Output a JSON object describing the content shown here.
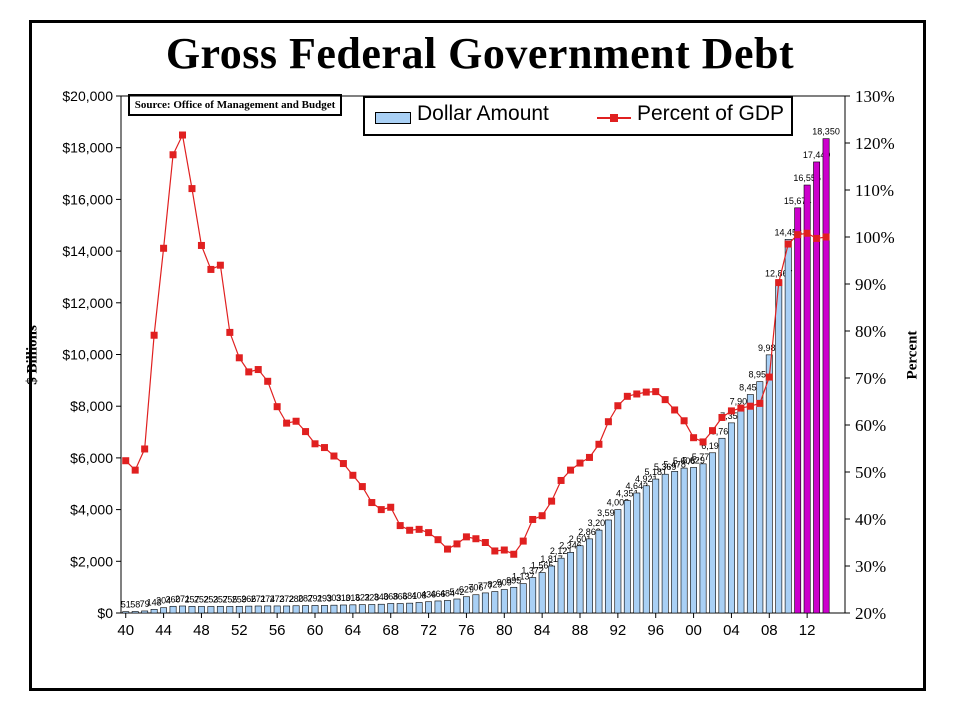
{
  "chart_data": {
    "type": "bar",
    "title": "Gross Federal Government Debt",
    "source": "Source: Office of Management and Budget",
    "ylabel_left": "$ Billions",
    "ylabel_right": "Percent",
    "left_axis": {
      "min": 0,
      "max": 20000,
      "ticks": [
        "$0",
        "$2,000",
        "$4,000",
        "$6,000",
        "$8,000",
        "$10,000",
        "$12,000",
        "$14,000",
        "$16,000",
        "$18,000",
        "$20,000"
      ]
    },
    "right_axis": {
      "min": 20,
      "max": 130,
      "ticks": [
        "20%",
        "30%",
        "40%",
        "50%",
        "60%",
        "70%",
        "80%",
        "90%",
        "100%",
        "110%",
        "120%",
        "130%"
      ]
    },
    "x_tick_labels": [
      "40",
      "44",
      "48",
      "52",
      "56",
      "60",
      "64",
      "68",
      "72",
      "76",
      "80",
      "84",
      "88",
      "92",
      "96",
      "00",
      "04",
      "08",
      "12"
    ],
    "legend_position": "top-right",
    "colors": {
      "bar": "#a9d0f5",
      "bar_projected": "#cc00cc",
      "line": "#e02020"
    },
    "years": [
      1940,
      1941,
      1942,
      1943,
      1944,
      1945,
      1946,
      1947,
      1948,
      1949,
      1950,
      1951,
      1952,
      1953,
      1954,
      1955,
      1956,
      1957,
      1958,
      1959,
      1960,
      1961,
      1962,
      1963,
      1964,
      1965,
      1966,
      1967,
      1968,
      1969,
      1970,
      1971,
      1972,
      1973,
      1974,
      1975,
      1976,
      1977,
      1978,
      1979,
      1980,
      1981,
      1982,
      1983,
      1984,
      1985,
      1986,
      1987,
      1988,
      1989,
      1990,
      1991,
      1992,
      1993,
      1994,
      1995,
      1996,
      1997,
      1998,
      1999,
      2000,
      2001,
      2002,
      2003,
      2004,
      2005,
      2006,
      2007,
      2008,
      2009,
      2010,
      2011,
      2012,
      2013,
      2014
    ],
    "series": [
      {
        "name": "Dollar Amount",
        "values": [
          51,
          58,
          79,
          143,
          204,
          260,
          271,
          257,
          252,
          253,
          257,
          255,
          259,
          266,
          271,
          274,
          273,
          272,
          280,
          287,
          291,
          293,
          303,
          310,
          316,
          322,
          328,
          340,
          368,
          366,
          381,
          408,
          436,
          466,
          484,
          542,
          629,
          706,
          777,
          829,
          909,
          995,
          1137,
          1372,
          1565,
          1817,
          2121,
          2346,
          2601,
          2868,
          3206,
          3598,
          4002,
          4351,
          4643,
          4921,
          5181,
          5369,
          5478,
          5606,
          5629,
          5770,
          6198,
          6760,
          7355,
          7905,
          8451,
          8951,
          9986,
          12867,
          14456,
          15674,
          16556,
          17449,
          18350
        ],
        "data_labels": [
          "51",
          "58",
          "79",
          "143",
          "204",
          "260",
          "271",
          "257",
          "252",
          "253",
          "257",
          "255",
          "259",
          "266",
          "271",
          "274",
          "273",
          "272",
          "280",
          "287",
          "291",
          "293",
          "303",
          "310",
          "316",
          "322",
          "328",
          "340",
          "368",
          "366",
          "381",
          "408",
          "436",
          "466",
          "484",
          "542",
          "629",
          "706",
          "777",
          "829",
          "909",
          "995",
          "1,137",
          "1,372",
          "1,565",
          "1,817",
          "2,121",
          "2,346",
          "2,601",
          "2,868",
          "3,206",
          "3,598",
          "4,002",
          "4,351",
          "4,643",
          "4,921",
          "5,181",
          "5,369",
          "5,478",
          "5,606",
          "5,629",
          "5,770",
          "6,198",
          "6,760",
          "7,355",
          "7,905",
          "8,451",
          "8,951",
          "9,986",
          "12,867",
          "14,456",
          "15,674",
          "16,556",
          "17,449",
          "18,350"
        ],
        "projected_from_year": 2011
      },
      {
        "name": "Percent of GDP",
        "axis": "right",
        "values": [
          52.4,
          50.4,
          54.9,
          79.1,
          97.6,
          117.5,
          121.7,
          110.3,
          98.2,
          93.1,
          94.0,
          79.7,
          74.3,
          71.3,
          71.8,
          69.3,
          63.9,
          60.4,
          60.8,
          58.6,
          56.0,
          55.2,
          53.4,
          51.8,
          49.3,
          46.9,
          43.5,
          42.0,
          42.5,
          38.6,
          37.6,
          37.8,
          37.1,
          35.6,
          33.6,
          34.7,
          36.2,
          35.8,
          35.0,
          33.2,
          33.4,
          32.5,
          35.3,
          39.9,
          40.7,
          43.8,
          48.2,
          50.4,
          51.9,
          53.1,
          55.9,
          60.7,
          64.1,
          66.1,
          66.6,
          67.0,
          67.1,
          65.4,
          63.2,
          60.9,
          57.3,
          56.4,
          58.8,
          61.6,
          63.0,
          63.6,
          64.0,
          64.6,
          70.2,
          90.3,
          98.5,
          100.5,
          100.8,
          99.7,
          100.0
        ]
      }
    ]
  }
}
